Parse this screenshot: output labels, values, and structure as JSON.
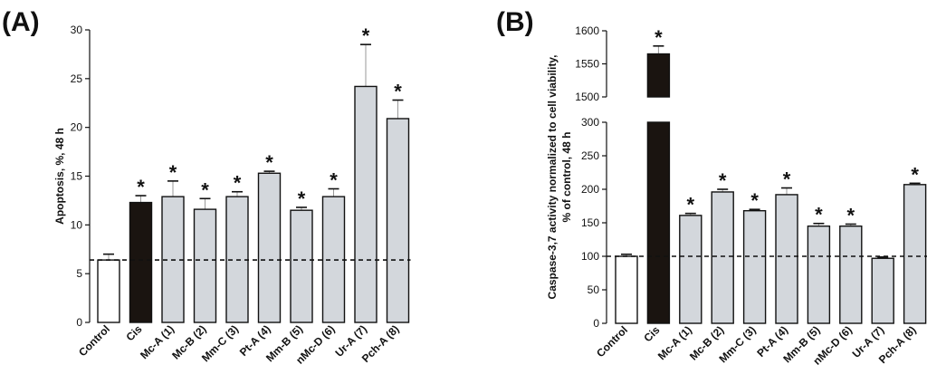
{
  "chart_data": [
    {
      "type": "bar",
      "panel_label": "(A)",
      "ylabel_lines": [
        "Apoptosis, %, 48 h"
      ],
      "ylim": [
        0,
        30
      ],
      "yticks": [
        0,
        5,
        10,
        15,
        20,
        25,
        30
      ],
      "categories": [
        "Control",
        "Cis",
        "Mc-A (1)",
        "Mc-B (2)",
        "Mm-C (3)",
        "Pt-A (4)",
        "Mm-B (5)",
        "nMc-D (6)",
        "Ur-A (7)",
        "Pch-A (8)"
      ],
      "values": [
        6.4,
        12.3,
        12.9,
        11.6,
        12.9,
        15.3,
        11.5,
        12.9,
        24.2,
        20.9
      ],
      "errors": [
        0.6,
        0.7,
        1.6,
        1.1,
        0.5,
        0.2,
        0.3,
        0.8,
        4.3,
        1.9
      ],
      "significant": [
        false,
        true,
        true,
        true,
        true,
        true,
        true,
        true,
        true,
        true
      ],
      "significance_marker": "*",
      "reference_line": 6.4,
      "bar_colors": [
        "#ffffff",
        "#1a1410",
        "#d3d7dc",
        "#d3d7dc",
        "#d3d7dc",
        "#d3d7dc",
        "#d3d7dc",
        "#d3d7dc",
        "#d3d7dc",
        "#d3d7dc"
      ]
    },
    {
      "type": "bar",
      "panel_label": "(B)",
      "ylabel_lines": [
        "Caspase-3,7 activity normalized to cell viability,",
        "% of control, 48 h"
      ],
      "ylim": [
        0,
        300
      ],
      "ylim_upper": [
        1500,
        1600
      ],
      "axis_break": true,
      "yticks": [
        0,
        50,
        100,
        150,
        200,
        250,
        300
      ],
      "yticks_upper": [
        1500,
        1550,
        1600
      ],
      "categories": [
        "Control",
        "Cis",
        "Mc-A (1)",
        "Mc-B (2)",
        "Mm-C (3)",
        "Pt-A (4)",
        "Mm-B (5)",
        "nMc-D (6)",
        "Ur-A (7)",
        "Pch-A (8)"
      ],
      "values": [
        100,
        1565,
        161,
        196,
        168,
        192,
        145,
        145,
        97,
        207
      ],
      "errors": [
        3,
        12,
        3,
        4,
        2,
        10,
        4,
        3,
        2,
        2
      ],
      "significant": [
        false,
        true,
        true,
        true,
        true,
        true,
        true,
        true,
        false,
        true
      ],
      "significance_marker": "*",
      "reference_line": 100,
      "bar_colors": [
        "#ffffff",
        "#1a1410",
        "#d3d7dc",
        "#d3d7dc",
        "#d3d7dc",
        "#d3d7dc",
        "#d3d7dc",
        "#d3d7dc",
        "#d3d7dc",
        "#d3d7dc"
      ]
    }
  ]
}
